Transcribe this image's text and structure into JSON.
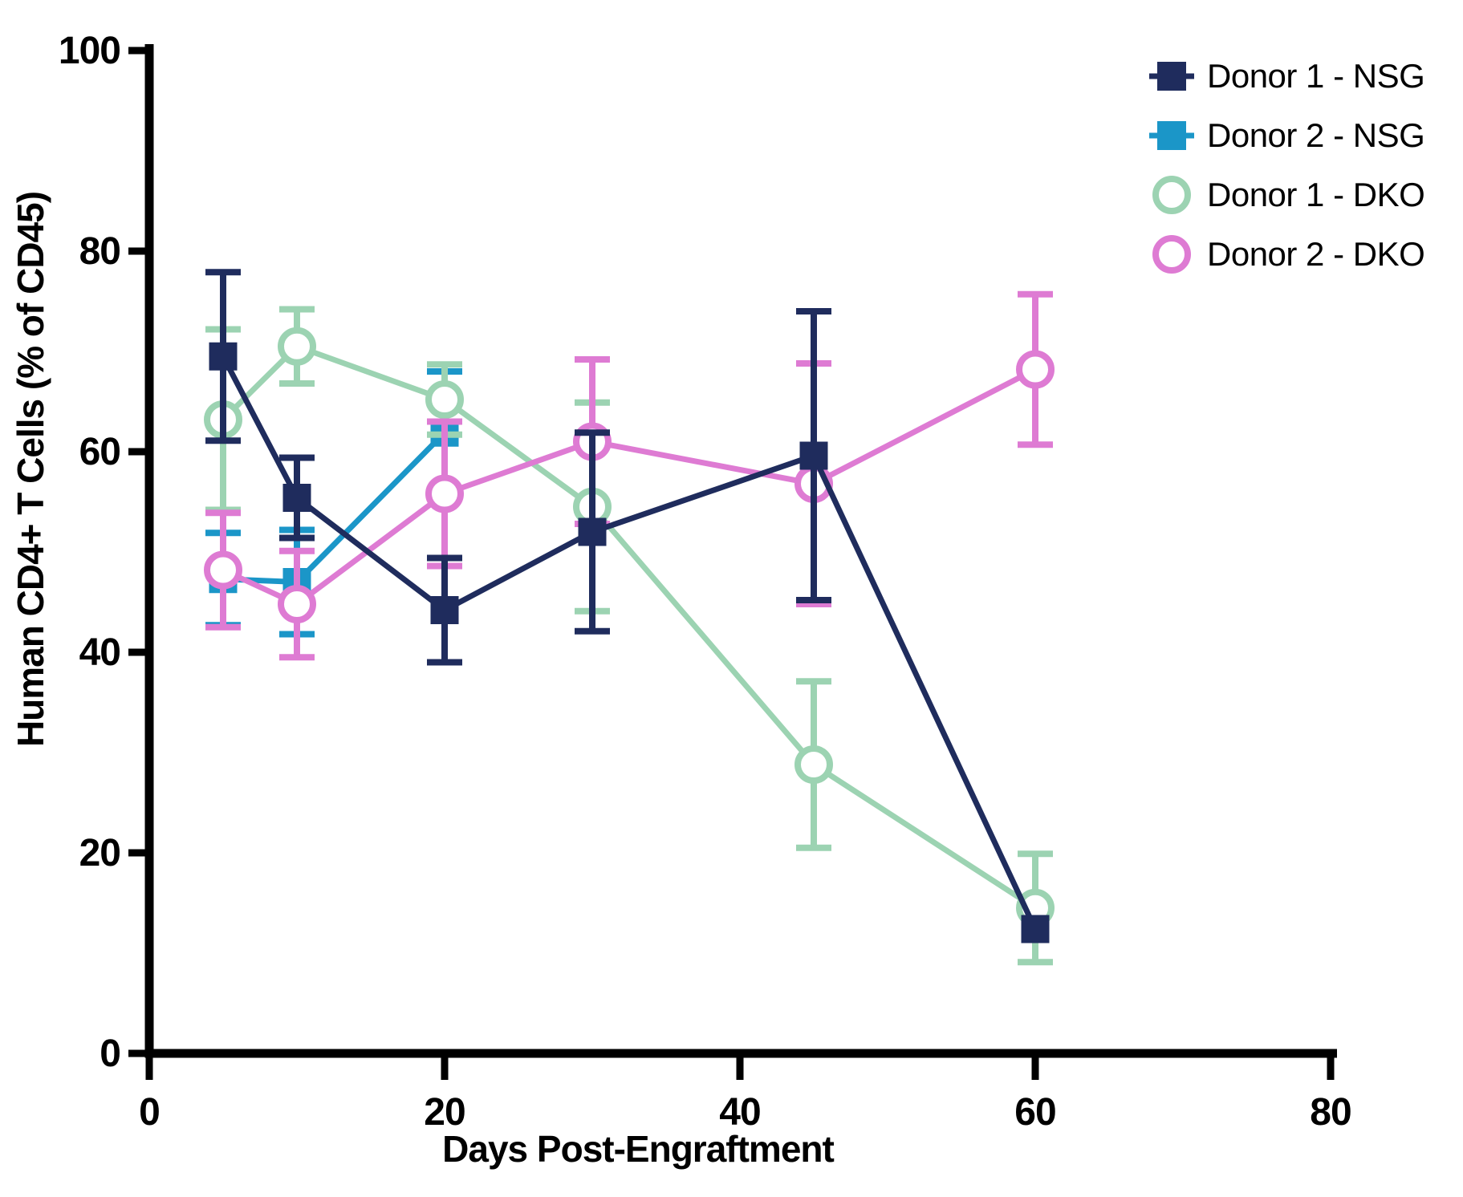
{
  "chart_data": {
    "type": "line",
    "title": "",
    "xlabel": "Days Post-Engraftment",
    "ylabel": "Human CD4+ T Cells (% of CD45)",
    "xlim": [
      0,
      80
    ],
    "ylim": [
      0,
      100
    ],
    "xticks": [
      0,
      20,
      40,
      60,
      80
    ],
    "yticks": [
      0,
      20,
      40,
      60,
      80,
      100
    ],
    "grid": false,
    "legend_position": "top-right",
    "axis_color": "#000000",
    "series": [
      {
        "name": "Donor 1 - NSG",
        "marker": "square",
        "marker_fill": "filled",
        "color": "#1f2c5d",
        "x": [
          5,
          10,
          20,
          30,
          45,
          60
        ],
        "values": [
          69.5,
          55.4,
          44.2,
          52.0,
          59.6,
          12.4
        ],
        "err": [
          8.4,
          4.0,
          5.2,
          9.9,
          14.4,
          0
        ]
      },
      {
        "name": "Donor 2 - NSG",
        "marker": "square",
        "marker_fill": "filled",
        "color": "#1b96c8",
        "x": [
          5,
          10,
          20
        ],
        "values": [
          47.3,
          47.0,
          61.9
        ],
        "err": [
          4.6,
          5.2,
          6.1
        ]
      },
      {
        "name": "Donor 1 - DKO",
        "marker": "circle",
        "marker_fill": "open",
        "color": "#9cd3b2",
        "x": [
          5,
          10,
          20,
          30,
          45,
          60
        ],
        "values": [
          63.2,
          70.5,
          65.2,
          54.5,
          28.8,
          14.5
        ],
        "err": [
          9.0,
          3.7,
          3.5,
          10.4,
          8.3,
          5.4
        ]
      },
      {
        "name": "Donor 2 - DKO",
        "marker": "circle",
        "marker_fill": "open",
        "color": "#de7bd3",
        "x": [
          5,
          10,
          20,
          30,
          45,
          60
        ],
        "values": [
          48.2,
          44.8,
          55.8,
          61.0,
          56.8,
          68.2
        ],
        "err": [
          5.7,
          5.3,
          7.2,
          8.2,
          12.0,
          7.5
        ]
      }
    ]
  }
}
